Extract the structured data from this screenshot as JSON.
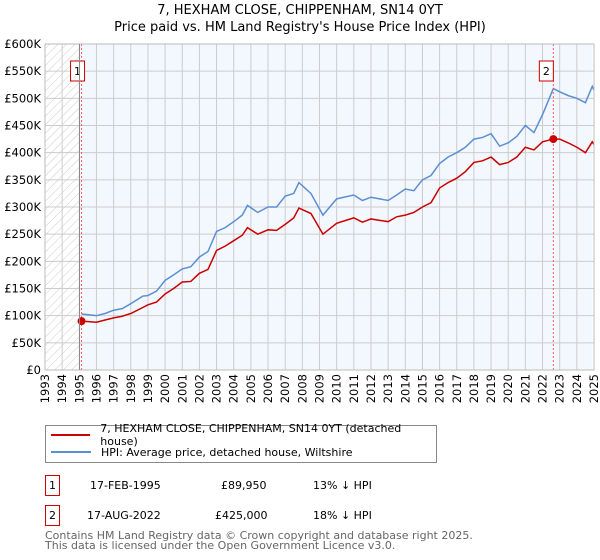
{
  "chart_data": {
    "type": "line",
    "title": "7, HEXHAM CLOSE, CHIPPENHAM, SN14 0YT",
    "subtitle": "Price paid vs. HM Land Registry's House Price Index (HPI)",
    "xlim": [
      1993,
      2025
    ],
    "ylim": [
      0,
      600000
    ],
    "yticks": [
      0,
      50000,
      100000,
      150000,
      200000,
      250000,
      300000,
      350000,
      400000,
      450000,
      500000,
      550000,
      600000
    ],
    "ytick_labels": [
      "£0",
      "£50K",
      "£100K",
      "£150K",
      "£200K",
      "£250K",
      "£300K",
      "£350K",
      "£400K",
      "£450K",
      "£500K",
      "£550K",
      "£600K"
    ],
    "xtick_labels": [
      "1993",
      "1994",
      "1995",
      "1996",
      "1997",
      "1998",
      "1999",
      "2000",
      "2001",
      "2002",
      "2003",
      "2004",
      "2005",
      "2006",
      "2007",
      "2008",
      "2009",
      "2010",
      "2011",
      "2012",
      "2013",
      "2014",
      "2015",
      "2016",
      "2017",
      "2018",
      "2019",
      "2020",
      "2021",
      "2022",
      "2023",
      "2024",
      "2025"
    ],
    "series": [
      {
        "name": "7, HEXHAM CLOSE, CHIPPENHAM, SN14 0YT (detached house)",
        "color": "#cc0000",
        "x": [
          1995.13,
          1996,
          1996.5,
          1997,
          1997.5,
          1998,
          1998.7,
          1999,
          1999.5,
          2000,
          2000.5,
          2001,
          2001.5,
          2002,
          2002.5,
          2003,
          2003.5,
          2004,
          2004.5,
          2004.8,
          2005.4,
          2006,
          2006.5,
          2007,
          2007.5,
          2007.8,
          2008.5,
          2009.2,
          2010,
          2011,
          2011.5,
          2012,
          2013,
          2013.5,
          2014,
          2014.5,
          2015,
          2015.5,
          2016,
          2016.5,
          2017,
          2017.5,
          2018,
          2018.5,
          2019,
          2019.5,
          2020,
          2020.5,
          2021,
          2021.5,
          2022,
          2022.63,
          2023,
          2023.5,
          2024,
          2024.5,
          2024.9,
          2025
        ],
        "values": [
          89950,
          88000,
          92000,
          96000,
          99000,
          104000,
          115000,
          120000,
          125000,
          140000,
          150000,
          162000,
          163000,
          178000,
          185000,
          220000,
          228000,
          238000,
          248000,
          262000,
          250000,
          258000,
          257000,
          268000,
          280000,
          298000,
          288000,
          250000,
          270000,
          280000,
          272000,
          278000,
          273000,
          282000,
          285000,
          290000,
          300000,
          308000,
          335000,
          345000,
          353000,
          365000,
          382000,
          385000,
          392000,
          378000,
          382000,
          392000,
          410000,
          405000,
          420000,
          425000,
          425000,
          418000,
          410000,
          400000,
          420000,
          415000
        ]
      },
      {
        "name": "HPI: Average price, detached house, Wiltshire",
        "color": "#5b8fd4",
        "x": [
          1995.13,
          1996,
          1996.5,
          1997,
          1997.5,
          1998,
          1998.7,
          1999,
          1999.5,
          2000,
          2000.5,
          2001,
          2001.5,
          2002,
          2002.5,
          2003,
          2003.5,
          2004,
          2004.5,
          2004.8,
          2005.4,
          2006,
          2006.5,
          2007,
          2007.5,
          2007.8,
          2008.5,
          2009.2,
          2010,
          2011,
          2011.5,
          2012,
          2013,
          2013.5,
          2014,
          2014.5,
          2015,
          2015.5,
          2016,
          2016.5,
          2017,
          2017.5,
          2018,
          2018.5,
          2019,
          2019.5,
          2020,
          2020.5,
          2021,
          2021.5,
          2022,
          2022.63,
          2023,
          2023.5,
          2024,
          2024.5,
          2024.9,
          2025
        ],
        "values": [
          103000,
          100000,
          104000,
          110000,
          113000,
          122000,
          136000,
          137000,
          145000,
          165000,
          175000,
          186000,
          190000,
          208000,
          218000,
          255000,
          262000,
          273000,
          285000,
          303000,
          290000,
          300000,
          300000,
          320000,
          325000,
          345000,
          325000,
          285000,
          315000,
          322000,
          312000,
          318000,
          312000,
          322000,
          333000,
          330000,
          350000,
          358000,
          380000,
          392000,
          400000,
          410000,
          425000,
          428000,
          435000,
          412000,
          418000,
          430000,
          450000,
          437000,
          470000,
          518000,
          512000,
          505000,
          500000,
          492000,
          522000,
          515000
        ]
      }
    ],
    "annotations": [
      {
        "label": "1",
        "date": "17-FEB-1995",
        "x": 1995.13,
        "price": "£89,950",
        "value": 89950,
        "hpi": "13% ↓ HPI"
      },
      {
        "label": "2",
        "date": "17-AUG-2022",
        "x": 2022.63,
        "price": "£425,000",
        "value": 425000,
        "hpi": "18% ↓ HPI"
      }
    ],
    "grid": true,
    "legend": "bottom"
  },
  "footer": {
    "line1": "Contains HM Land Registry data © Crown copyright and database right 2025.",
    "line2": "This data is licensed under the Open Government Licence v3.0."
  }
}
